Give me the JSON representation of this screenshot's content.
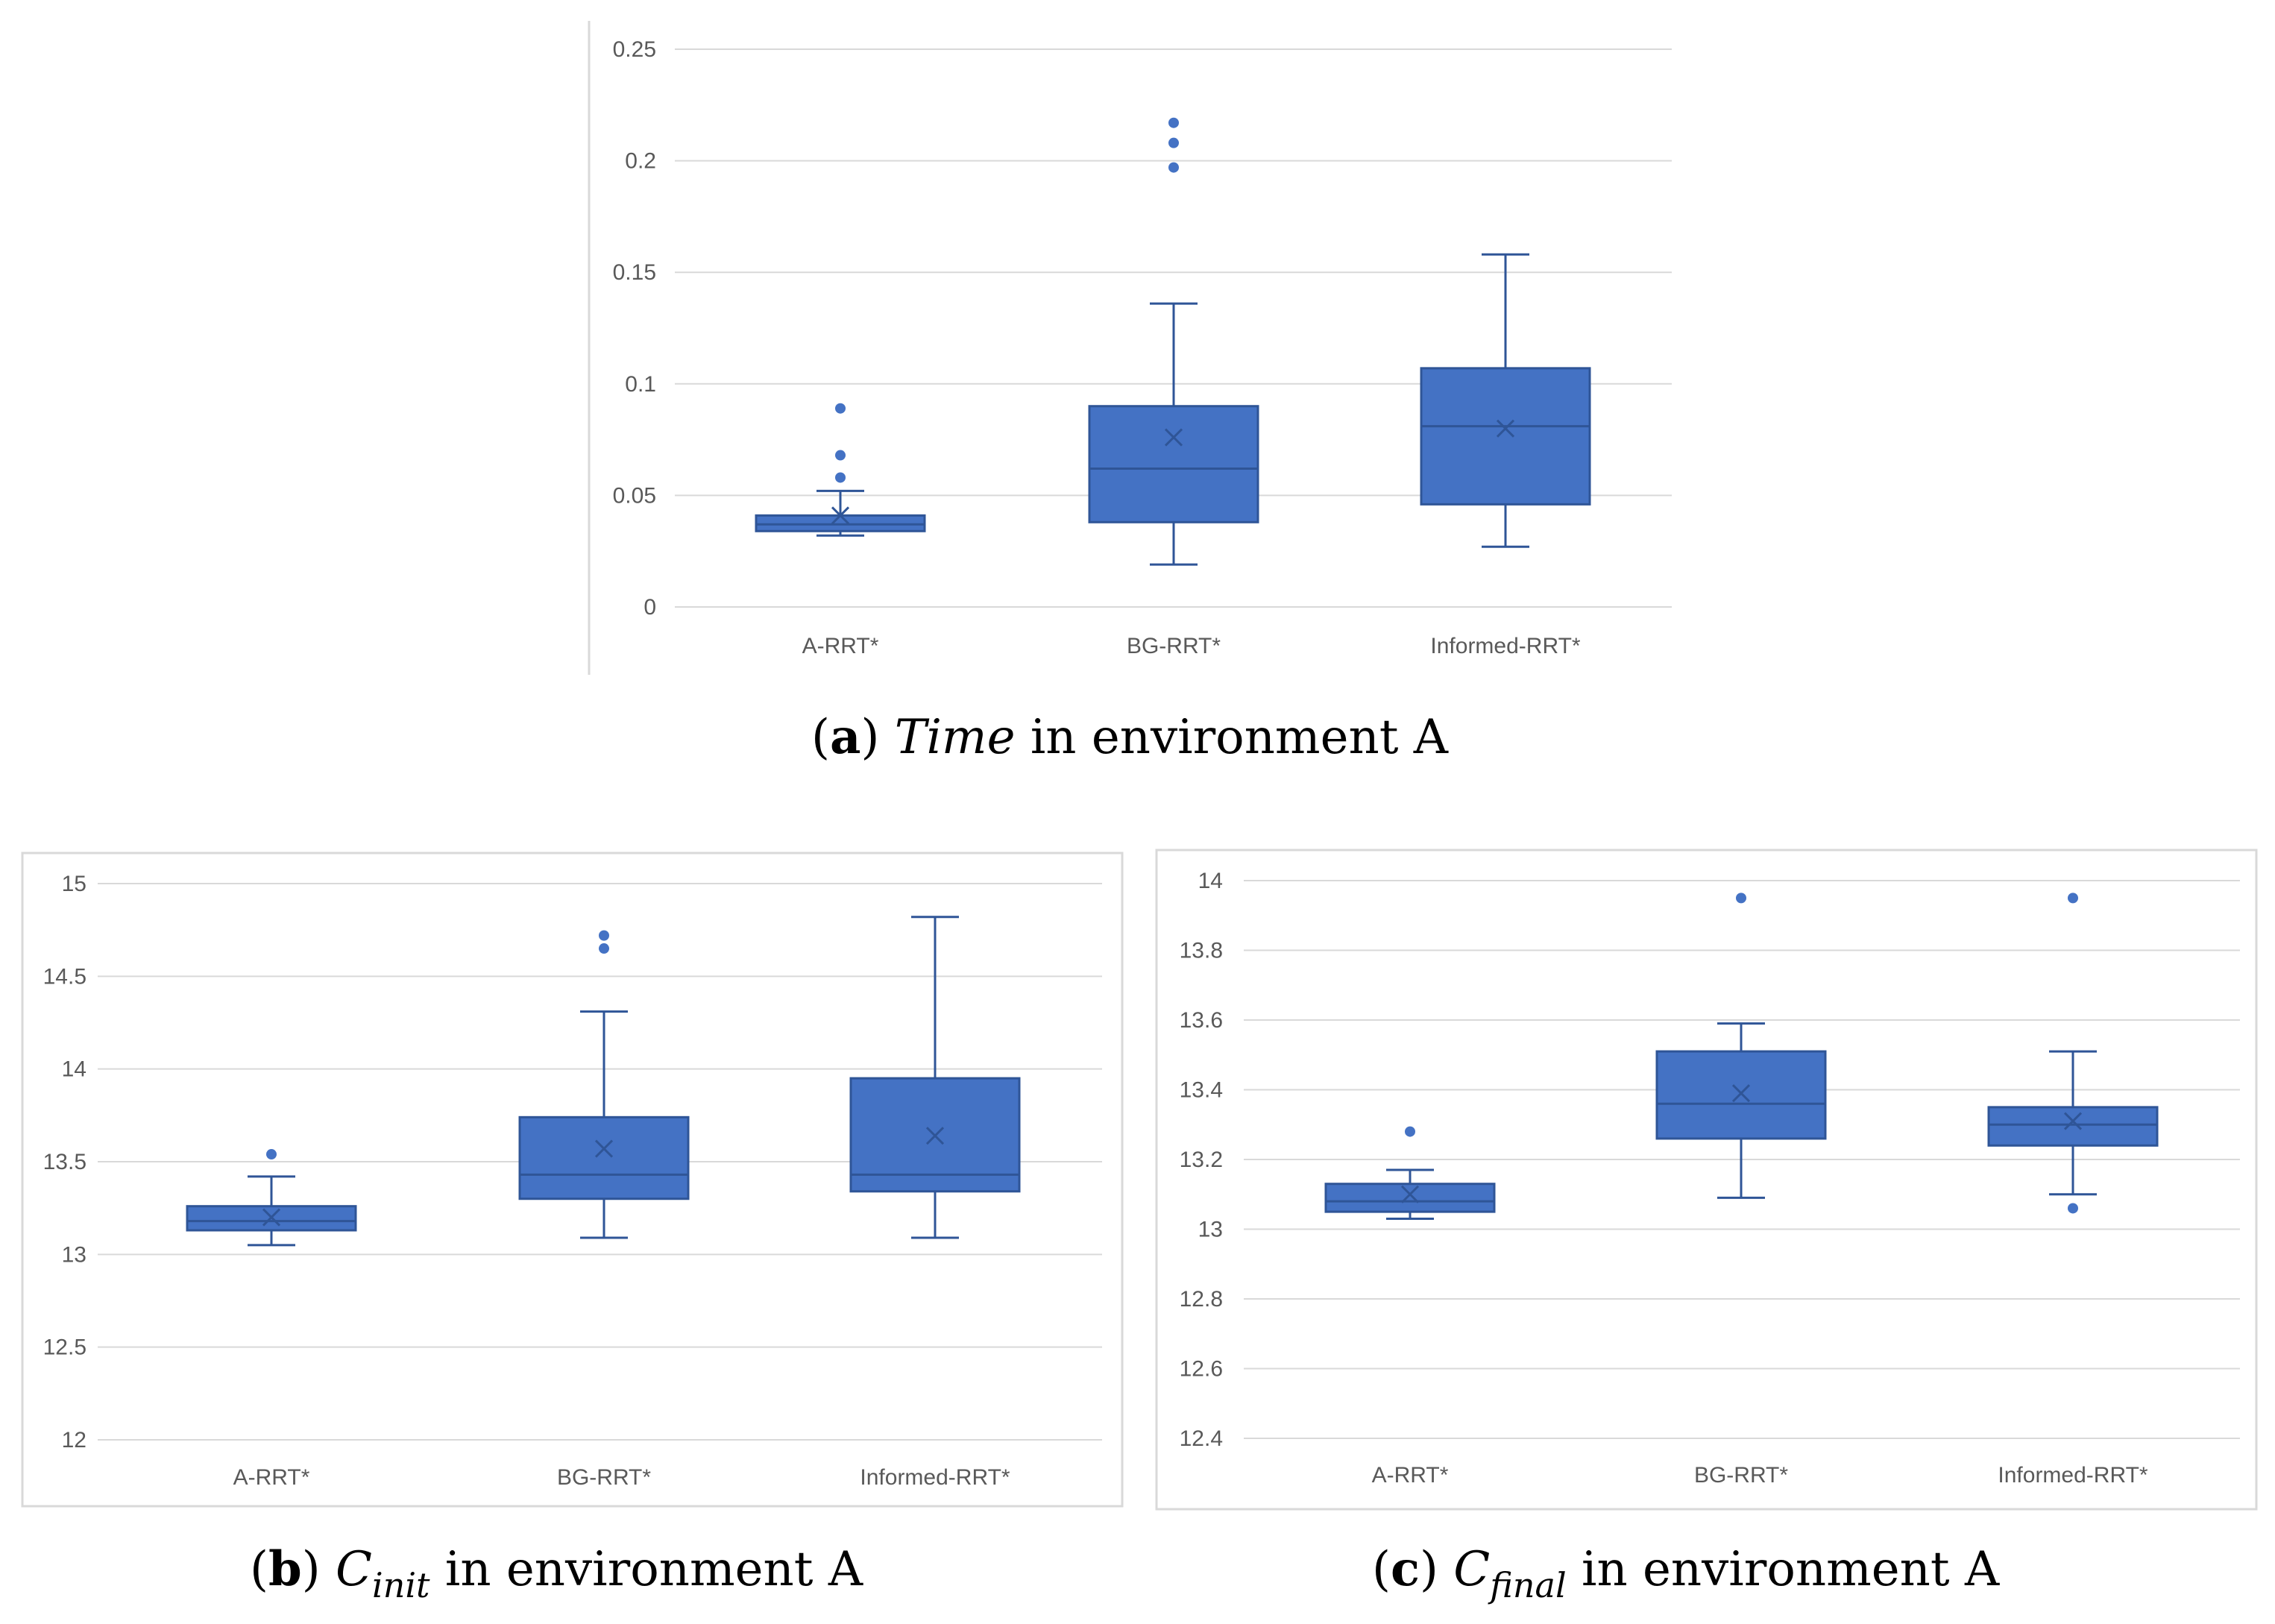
{
  "colors": {
    "box_fill": "#4472c4",
    "box_stroke": "#2f5597",
    "grid": "#d9d9d9",
    "tick_text": "#595959"
  },
  "chart_data": [
    {
      "id": "a",
      "type": "boxplot",
      "title": "",
      "ylim": [
        0,
        0.25
      ],
      "yticks": [
        0,
        0.05,
        0.1,
        0.15,
        0.2,
        0.25
      ],
      "ytick_labels": [
        "0",
        "0.05",
        "0.1",
        "0.15",
        "0.2",
        "0.25"
      ],
      "categories": [
        "A-RRT*",
        "BG-RRT*",
        "Informed-RRT*"
      ],
      "boxes": [
        {
          "min": 0.032,
          "q1": 0.034,
          "median": 0.037,
          "q3": 0.041,
          "max": 0.052,
          "mean": 0.041,
          "outliers": [
            0.058,
            0.068,
            0.089
          ]
        },
        {
          "min": 0.019,
          "q1": 0.038,
          "median": 0.062,
          "q3": 0.09,
          "max": 0.136,
          "mean": 0.076,
          "outliers": [
            0.197,
            0.208,
            0.217
          ]
        },
        {
          "min": 0.027,
          "q1": 0.046,
          "median": 0.081,
          "q3": 0.107,
          "max": 0.158,
          "mean": 0.08,
          "outliers": []
        }
      ],
      "caption": {
        "label": "a",
        "metric": "Time",
        "sub": "",
        "text": " in environment A"
      }
    },
    {
      "id": "b",
      "type": "boxplot",
      "title": "",
      "ylim": [
        12,
        15
      ],
      "yticks": [
        12,
        12.5,
        13,
        13.5,
        14,
        14.5,
        15
      ],
      "ytick_labels": [
        "12",
        "12.5",
        "13",
        "13.5",
        "14",
        "14.5",
        "15"
      ],
      "categories": [
        "A-RRT*",
        "BG-RRT*",
        "Informed-RRT*"
      ],
      "boxes": [
        {
          "min": 13.05,
          "q1": 13.13,
          "median": 13.18,
          "q3": 13.26,
          "max": 13.42,
          "mean": 13.2,
          "outliers": [
            13.54
          ]
        },
        {
          "min": 13.09,
          "q1": 13.3,
          "median": 13.43,
          "q3": 13.74,
          "max": 14.31,
          "mean": 13.57,
          "outliers": [
            14.65,
            14.72
          ]
        },
        {
          "min": 13.09,
          "q1": 13.34,
          "median": 13.43,
          "q3": 13.95,
          "max": 14.82,
          "mean": 13.64,
          "outliers": []
        }
      ],
      "caption": {
        "label": "b",
        "metric": "C",
        "sub": "init",
        "text": " in environment A"
      }
    },
    {
      "id": "c",
      "type": "boxplot",
      "title": "",
      "ylim": [
        12.4,
        14
      ],
      "yticks": [
        12.4,
        12.6,
        12.8,
        13,
        13.2,
        13.4,
        13.6,
        13.8,
        14
      ],
      "ytick_labels": [
        "12.4",
        "12.6",
        "12.8",
        "13",
        "13.2",
        "13.4",
        "13.6",
        "13.8",
        "14"
      ],
      "categories": [
        "A-RRT*",
        "BG-RRT*",
        "Informed-RRT*"
      ],
      "boxes": [
        {
          "min": 13.03,
          "q1": 13.05,
          "median": 13.08,
          "q3": 13.13,
          "max": 13.17,
          "mean": 13.1,
          "outliers": [
            13.28
          ]
        },
        {
          "min": 13.09,
          "q1": 13.26,
          "median": 13.36,
          "q3": 13.51,
          "max": 13.59,
          "mean": 13.39,
          "outliers": [
            13.95
          ]
        },
        {
          "min": 13.1,
          "q1": 13.24,
          "median": 13.3,
          "q3": 13.35,
          "max": 13.51,
          "mean": 13.31,
          "outliers": [
            13.06,
            13.95
          ]
        }
      ],
      "caption": {
        "label": "c",
        "metric": "C",
        "sub": "final",
        "text": " in environment A"
      }
    }
  ]
}
